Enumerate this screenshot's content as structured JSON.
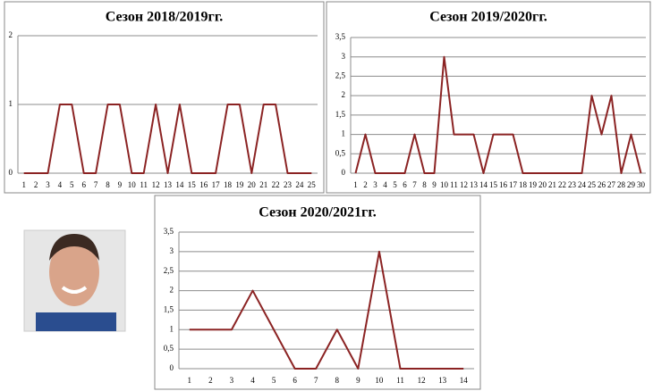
{
  "chart_data": [
    {
      "type": "line",
      "title": "Сезон 2018/2019гг.",
      "categories": [
        1,
        2,
        3,
        4,
        5,
        6,
        7,
        8,
        9,
        10,
        11,
        12,
        13,
        14,
        15,
        16,
        17,
        18,
        19,
        20,
        21,
        22,
        23,
        24,
        25
      ],
      "values": [
        0,
        0,
        0,
        1,
        1,
        0,
        0,
        1,
        1,
        0,
        0,
        1,
        0,
        1,
        0,
        0,
        0,
        1,
        1,
        0,
        1,
        1,
        0,
        0,
        0
      ],
      "color": "#8b2323",
      "ylim": [
        0,
        2
      ],
      "yticks": [
        0,
        1,
        2
      ],
      "grid": true
    },
    {
      "type": "line",
      "title": "Сезон 2019/2020гг.",
      "categories": [
        1,
        2,
        3,
        4,
        5,
        6,
        7,
        8,
        9,
        10,
        11,
        12,
        13,
        14,
        15,
        16,
        17,
        18,
        19,
        20,
        21,
        22,
        23,
        24,
        25,
        26,
        27,
        28,
        29,
        30
      ],
      "values": [
        0,
        1,
        0,
        0,
        0,
        0,
        1,
        0,
        0,
        3,
        1,
        1,
        1,
        0,
        1,
        1,
        1,
        0,
        0,
        0,
        0,
        0,
        0,
        0,
        2,
        1,
        2,
        0,
        1,
        0
      ],
      "color": "#8b2323",
      "ylim": [
        0,
        3.5
      ],
      "yticks": [
        0,
        {
          "value": 0.5,
          "label": "0,5"
        },
        1,
        {
          "value": 1.5,
          "label": "1,5"
        },
        2,
        {
          "value": 2.5,
          "label": "2,5"
        },
        3,
        {
          "value": 3.5,
          "label": "3,5"
        }
      ],
      "grid": true
    },
    {
      "type": "line",
      "title": "Сезон 2020/2021гг.",
      "categories": [
        1,
        2,
        3,
        4,
        5,
        6,
        7,
        8,
        9,
        10,
        11,
        12,
        13,
        14
      ],
      "values": [
        1,
        1,
        1,
        2,
        1,
        0,
        0,
        1,
        0,
        3,
        0,
        0,
        0,
        0
      ],
      "color": "#8b2323",
      "ylim": [
        0,
        3.5
      ],
      "yticks": [
        0,
        {
          "value": 0.5,
          "label": "0,5"
        },
        1,
        {
          "value": 1.5,
          "label": "1,5"
        },
        2,
        {
          "value": 2.5,
          "label": "2,5"
        },
        3,
        {
          "value": 3.5,
          "label": "3,5"
        }
      ],
      "grid": true
    }
  ]
}
